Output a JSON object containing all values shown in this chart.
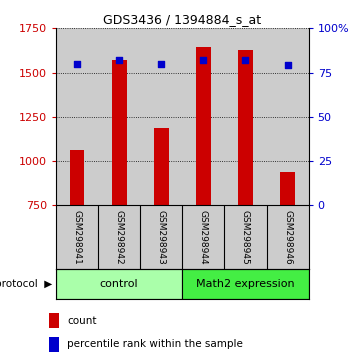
{
  "title": "GDS3436 / 1394884_s_at",
  "samples": [
    "GSM298941",
    "GSM298942",
    "GSM298943",
    "GSM298944",
    "GSM298945",
    "GSM298946"
  ],
  "counts": [
    1060,
    1570,
    1185,
    1645,
    1630,
    940
  ],
  "percentiles": [
    80,
    82,
    80,
    82,
    82,
    79
  ],
  "ylim_left": [
    750,
    1750
  ],
  "ylim_right": [
    0,
    100
  ],
  "yticks_left": [
    750,
    1000,
    1250,
    1500,
    1750
  ],
  "yticks_right": [
    0,
    25,
    50,
    75,
    100
  ],
  "bar_color": "#cc0000",
  "scatter_color": "#0000cc",
  "groups": [
    {
      "label": "control",
      "start": 0,
      "end": 3,
      "color": "#aaffaa"
    },
    {
      "label": "Math2 expression",
      "start": 3,
      "end": 6,
      "color": "#44ee44"
    }
  ],
  "protocol_label": "protocol",
  "legend_count_label": "count",
  "legend_pct_label": "percentile rank within the sample",
  "tick_label_color_left": "#cc0000",
  "tick_label_color_right": "#0000cc",
  "bar_width": 0.35,
  "background_column": "#cccccc",
  "plot_bg": "#ffffff"
}
